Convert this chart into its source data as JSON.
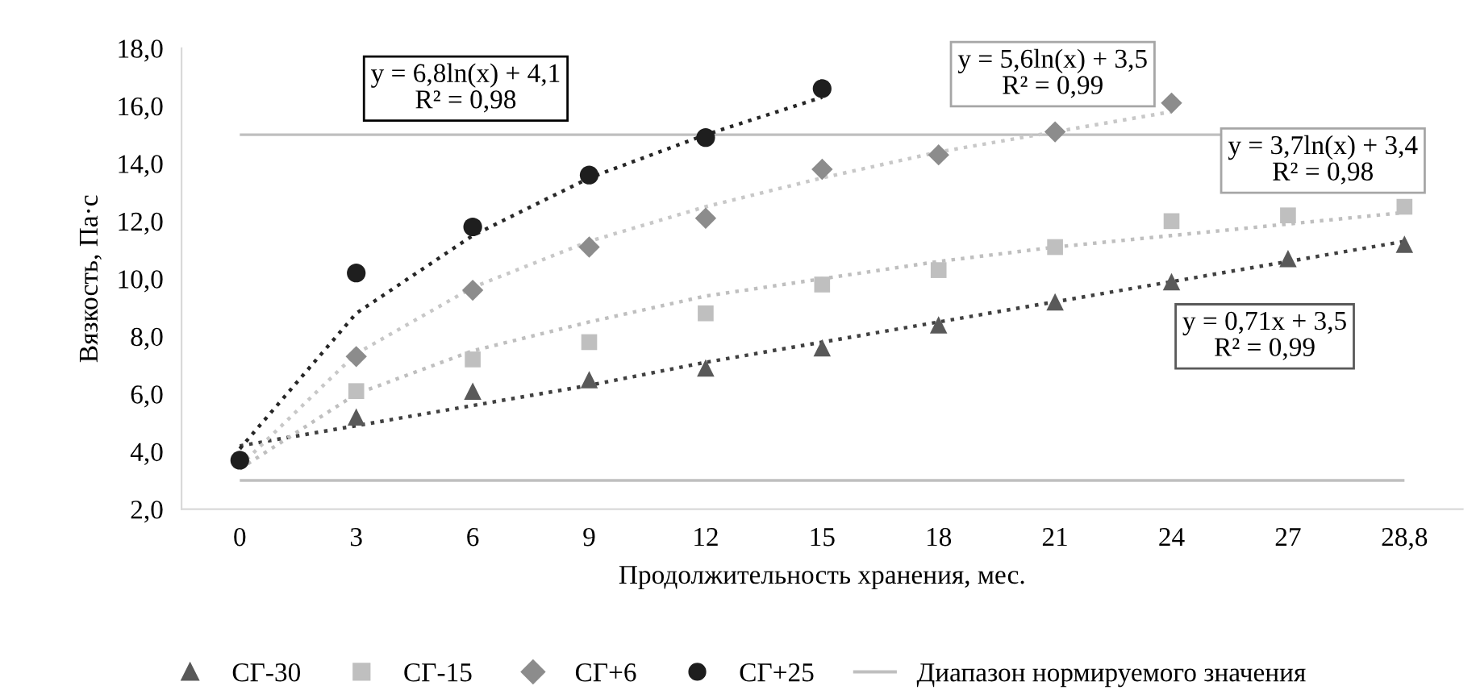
{
  "chart_data": {
    "type": "scatter",
    "xlabel": "Продолжительность хранения, мес.",
    "ylabel": "Вязкость, Па·с",
    "categories": [
      "0",
      "3",
      "6",
      "9",
      "12",
      "15",
      "18",
      "21",
      "24",
      "27",
      "28,8"
    ],
    "series": [
      {
        "name": "СГ-30",
        "marker": "triangle",
        "color": "#595959",
        "values": [
          null,
          5.2,
          6.1,
          6.5,
          6.9,
          7.6,
          8.4,
          9.2,
          9.9,
          10.7,
          11.2
        ]
      },
      {
        "name": "СГ-15",
        "marker": "square",
        "color": "#bfbfbf",
        "values": [
          null,
          6.1,
          7.2,
          7.8,
          8.8,
          9.8,
          10.3,
          11.1,
          12.0,
          12.2,
          12.5
        ]
      },
      {
        "name": "СГ+6",
        "marker": "diamond",
        "color": "#8c8c8c",
        "values": [
          null,
          7.3,
          9.6,
          11.1,
          12.1,
          13.8,
          14.3,
          15.1,
          16.1,
          null,
          null
        ]
      },
      {
        "name": "СГ+25",
        "marker": "circle",
        "color": "#1e1e1e",
        "values": [
          3.7,
          10.2,
          11.8,
          13.6,
          14.9,
          16.6,
          null,
          null,
          null,
          null,
          null
        ]
      },
      {
        "type": "line",
        "line_style": "dotted",
        "marker": "none",
        "color": "#404040",
        "values": [
          4.2,
          4.9,
          5.6,
          6.3,
          7.1,
          7.8,
          8.5,
          9.2,
          9.9,
          10.6,
          11.3
        ]
      },
      {
        "type": "line",
        "line_style": "dotted",
        "marker": "none",
        "color": "#bfbfbf",
        "values": [
          3.4,
          6.0,
          7.5,
          8.5,
          9.4,
          10.0,
          10.6,
          11.1,
          11.5,
          11.9,
          12.3
        ]
      },
      {
        "type": "line",
        "line_style": "dotted",
        "marker": "none",
        "color": "#c8c8c8",
        "values": [
          3.5,
          7.4,
          9.7,
          11.3,
          12.5,
          13.5,
          14.4,
          15.1,
          15.8,
          null,
          null
        ]
      },
      {
        "type": "line",
        "line_style": "dotted",
        "marker": "none",
        "color": "#262626",
        "values": [
          4.1,
          8.8,
          11.5,
          13.5,
          15.0,
          16.3,
          null,
          null,
          null,
          null,
          null
        ]
      }
    ],
    "ylim": [
      2,
      18
    ],
    "yticks": [
      {
        "value": 2,
        "label": "2,0"
      },
      {
        "value": 4,
        "label": "4,0"
      },
      {
        "value": 6,
        "label": "6,0"
      },
      {
        "value": 8,
        "label": "8,0"
      },
      {
        "value": 10,
        "label": "10,0"
      },
      {
        "value": 12,
        "label": "12,0"
      },
      {
        "value": 14,
        "label": "14,0"
      },
      {
        "value": 16,
        "label": "16,0"
      },
      {
        "value": 18,
        "label": "18,0"
      }
    ],
    "ref_lines": [
      {
        "axis": "y",
        "value": 15,
        "label": "Диапазон нормируемого значения",
        "color": "#bfbfbf",
        "line_style": "solid"
      },
      {
        "axis": "y",
        "value": 3,
        "color": "#bfbfbf",
        "line_style": "solid"
      }
    ],
    "annotations": [
      "y = 6,8ln(x) + 4,1\nR² = 0,98",
      "y = 5,6ln(x) + 3,5\nR² = 0,99",
      "y = 3,7ln(x) + 3,4\nR² = 0,98",
      "y = 0,71x + 3,5\nR² = 0,99"
    ],
    "grid": false,
    "legend": "bottom"
  }
}
